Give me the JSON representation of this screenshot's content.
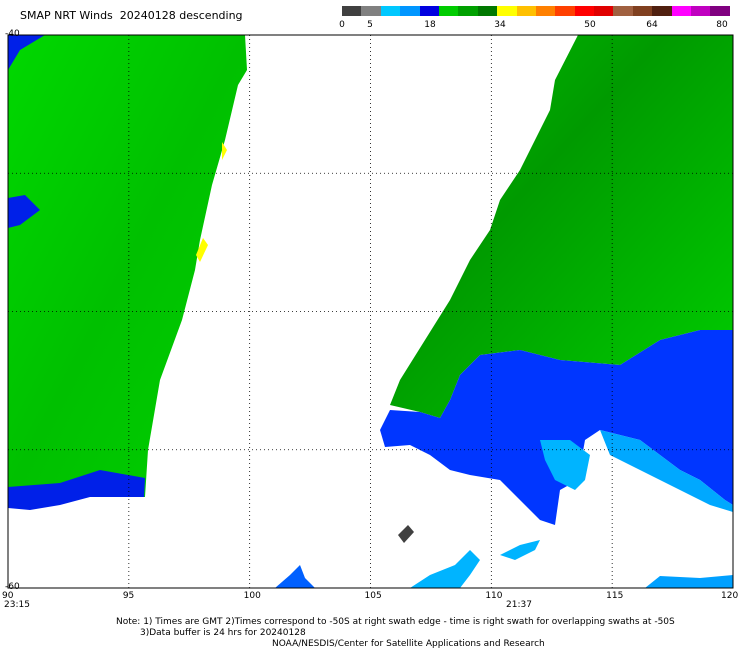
{
  "header": {
    "title": "SMAP NRT Winds  20240128 descending"
  },
  "color_scale": {
    "segments": [
      {
        "color": "#404040"
      },
      {
        "color": "#808080"
      },
      {
        "color": "#00c8ff"
      },
      {
        "color": "#0096ff"
      },
      {
        "color": "#0000e0"
      },
      {
        "color": "#00cc00"
      },
      {
        "color": "#00a000"
      },
      {
        "color": "#007800"
      },
      {
        "color": "#ffff00"
      },
      {
        "color": "#ffc000"
      },
      {
        "color": "#ff8000"
      },
      {
        "color": "#ff4000"
      },
      {
        "color": "#ff0000"
      },
      {
        "color": "#e00000"
      },
      {
        "color": "#a06040"
      },
      {
        "color": "#804020"
      },
      {
        "color": "#502010"
      },
      {
        "color": "#ff00ff"
      },
      {
        "color": "#c000c0"
      },
      {
        "color": "#800080"
      }
    ],
    "labels": [
      "0",
      "5",
      "18",
      "34",
      "50",
      "64",
      "80"
    ]
  },
  "map": {
    "lon_range": [
      90,
      120
    ],
    "lat_range": [
      -60,
      -40
    ],
    "lon_ticks": [
      "90",
      "95",
      "100",
      "105",
      "110",
      "115",
      "120"
    ],
    "lat_ticks": [
      "-40",
      "-60"
    ],
    "grid": true,
    "swath_times": [
      "23:15",
      "21:37"
    ]
  },
  "notes": {
    "line1": "Note: 1) Times are GMT 2)Times correspond to -50S at right swath edge - time is right swath for overlapping swaths at -50S",
    "line2": "3)Data buffer is 24 hrs for 20240128",
    "line3": "NOAA/NESDIS/Center for Satellite Applications and Research"
  }
}
